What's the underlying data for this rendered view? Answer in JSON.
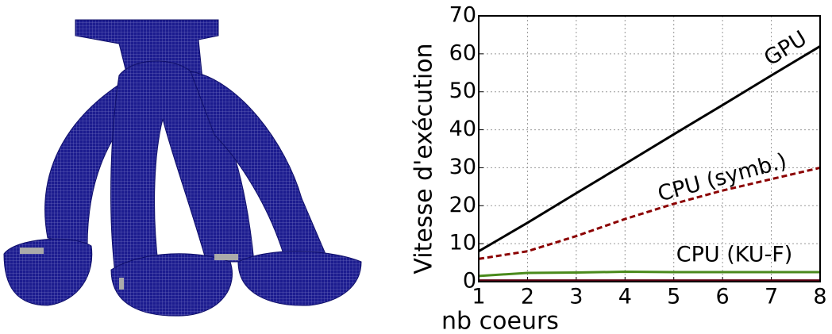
{
  "chart_data": {
    "type": "line",
    "xlabel": "nb coeurs",
    "ylabel": "Vitesse d'exécution",
    "x": [
      1,
      2,
      3,
      4,
      5,
      6,
      7,
      8
    ],
    "series": [
      {
        "name": "GPU",
        "color": "#000000",
        "dash": "solid",
        "values": [
          8,
          15.5,
          23.3,
          31,
          38.8,
          46.5,
          54.3,
          62
        ]
      },
      {
        "name": "CPU (symb.)",
        "color": "#8b0000",
        "dash": "dashed",
        "values": [
          6,
          8,
          12,
          16.5,
          20.5,
          24,
          27,
          30
        ]
      },
      {
        "name": "CPU (KU-F)",
        "color": "#4a8a1c",
        "dash": "solid",
        "values": [
          1.5,
          2.3,
          2.4,
          2.6,
          2.5,
          2.5,
          2.5,
          2.5
        ]
      },
      {
        "color": "#5a0010",
        "dash": "solid",
        "values": [
          0.3,
          0.3,
          0.3,
          0.3,
          0.3,
          0.3,
          0.3,
          0.3
        ]
      }
    ],
    "xlim": [
      1,
      8
    ],
    "ylim": [
      0,
      70
    ],
    "xticks": [
      1,
      2,
      3,
      4,
      5,
      6,
      7,
      8
    ],
    "yticks": [
      0,
      10,
      20,
      30,
      40,
      50,
      60,
      70
    ],
    "grid": true
  }
}
